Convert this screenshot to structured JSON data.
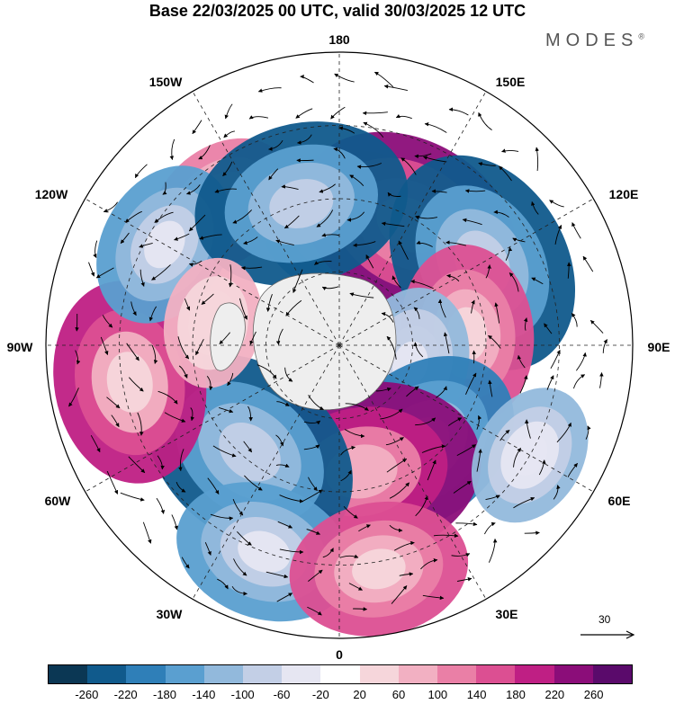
{
  "title": "Base 22/03/2025 00 UTC, valid 30/03/2025 12 UTC",
  "brand": "MODES",
  "brand_mark": "®",
  "longitude_labels": {
    "lon_180": "180",
    "lon_150w": "150W",
    "lon_150e": "150E",
    "lon_120w": "120W",
    "lon_120e": "120E",
    "lon_90w": "90W",
    "lon_90e": "90E",
    "lon_60w": "60W",
    "lon_60e": "60E",
    "lon_30w": "30W",
    "lon_30e": "30E",
    "lon_0": "0"
  },
  "reference_vector": "30",
  "colorbar": {
    "colors": [
      "#0b3754",
      "#105a8c",
      "#2f7fb8",
      "#5a9fd0",
      "#92b9dc",
      "#c3cfe6",
      "#e6e6f2",
      "#ffffff",
      "#f6d6db",
      "#f2b0c2",
      "#ea7fa6",
      "#dc4f92",
      "#bf1f84",
      "#8b0d79",
      "#5a0a6b"
    ],
    "ticks": [
      "-260",
      "-220",
      "-180",
      "-140",
      "-100",
      "-60",
      "-20",
      "20",
      "60",
      "100",
      "140",
      "180",
      "220",
      "260"
    ]
  },
  "anomaly_centers": [
    {
      "lon": 170,
      "lat": 57,
      "value": -200
    },
    {
      "lon": 150,
      "lat": 52,
      "value": 240
    },
    {
      "lon": 120,
      "lat": 45,
      "value": -240
    },
    {
      "lon": 95,
      "lat": 55,
      "value": 160
    },
    {
      "lon": 75,
      "lat": 70,
      "value": -120
    },
    {
      "lon": 40,
      "lat": 55,
      "value": -200
    },
    {
      "lon": 10,
      "lat": 55,
      "value": 260
    },
    {
      "lon": -40,
      "lat": 52,
      "value": -240
    },
    {
      "lon": -20,
      "lat": 30,
      "value": -160
    },
    {
      "lon": 10,
      "lat": 28,
      "value": 160
    },
    {
      "lon": -80,
      "lat": 32,
      "value": 200
    },
    {
      "lon": -140,
      "lat": 40,
      "value": 120
    },
    {
      "lon": -120,
      "lat": 35,
      "value": -140
    },
    {
      "lon": -165,
      "lat": 50,
      "value": -220
    },
    {
      "lon": 60,
      "lat": 30,
      "value": -100
    },
    {
      "lon": -100,
      "lat": 55,
      "value": 80
    }
  ]
}
